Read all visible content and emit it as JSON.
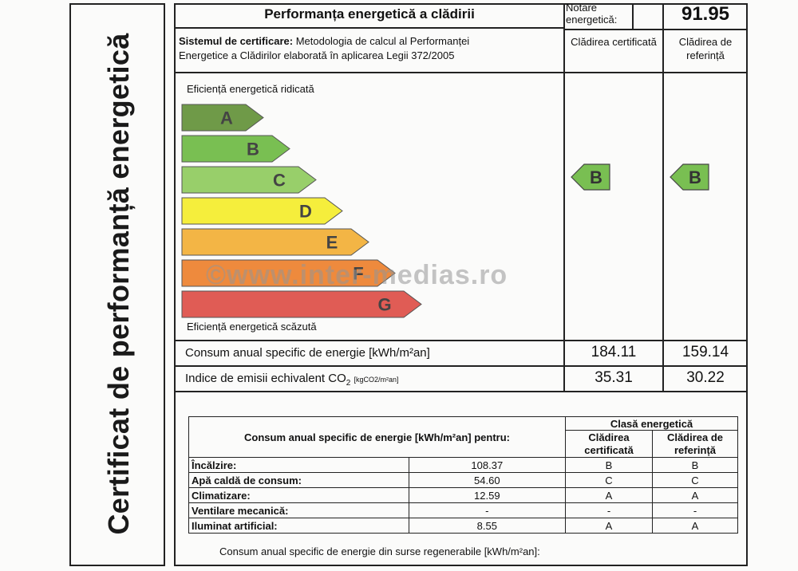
{
  "side_title": "Certificat de performanță energetică",
  "header": {
    "title": "Performanța energetică a clădirii",
    "notare_label": "Notare energetică:",
    "notare_value": "91.95"
  },
  "system": {
    "label": "Sistemul de certificare:",
    "text_line1": "Metodologia de calcul al Performanței",
    "text_line2": "Energetice a Clădirilor elaborată în aplicarea Legii 372/2005",
    "col_certified": "Clădirea certificată",
    "col_reference": "Clădirea de referință"
  },
  "scale": {
    "top_label": "Eficiență energetică ridicată",
    "bottom_label": "Eficiență energetică scăzută",
    "classes": [
      {
        "letter": "A",
        "color": "#6f9a48"
      },
      {
        "letter": "B",
        "color": "#79bf52"
      },
      {
        "letter": "C",
        "color": "#98cf6a"
      },
      {
        "letter": "D",
        "color": "#f5ee3c"
      },
      {
        "letter": "E",
        "color": "#f3b545"
      },
      {
        "letter": "F",
        "color": "#ee8a3d"
      },
      {
        "letter": "G",
        "color": "#e05c55"
      }
    ],
    "certified_class": "B",
    "reference_class": "B",
    "marker_color": "#79bf52"
  },
  "consumption": {
    "label": "Consum anual specific de energie [kWh/m²an]",
    "certified": "184.11",
    "reference": "159.14"
  },
  "emissions": {
    "label": "Indice de emisii echivalent CO",
    "label_sub": "2",
    "unit": "[kgCO2/m²an]",
    "certified": "35.31",
    "reference": "30.22"
  },
  "breakdown": {
    "header": "Consum anual specific de energie [kWh/m²an] pentru:",
    "class_header": "Clasă energetică",
    "col_certified": "Clădirea certificată",
    "col_reference": "Clădirea de referință",
    "rows": [
      {
        "label": "Încălzire:",
        "value": "108.37",
        "cert": "B",
        "ref": "B"
      },
      {
        "label": "Apă caldă de consum:",
        "value": "54.60",
        "cert": "C",
        "ref": "C"
      },
      {
        "label": "Climatizare:",
        "value": "12.59",
        "cert": "A",
        "ref": "A"
      },
      {
        "label": "Ventilare mecanică:",
        "value": "-",
        "cert": "-",
        "ref": "-"
      },
      {
        "label": "Iluminat artificial:",
        "value": "8.55",
        "cert": "A",
        "ref": "A"
      }
    ],
    "renewable_label": "Consum anual specific de energie din surse regenerabile [kWh/m²an]:"
  },
  "watermark": "©www.inter-medias.ro"
}
